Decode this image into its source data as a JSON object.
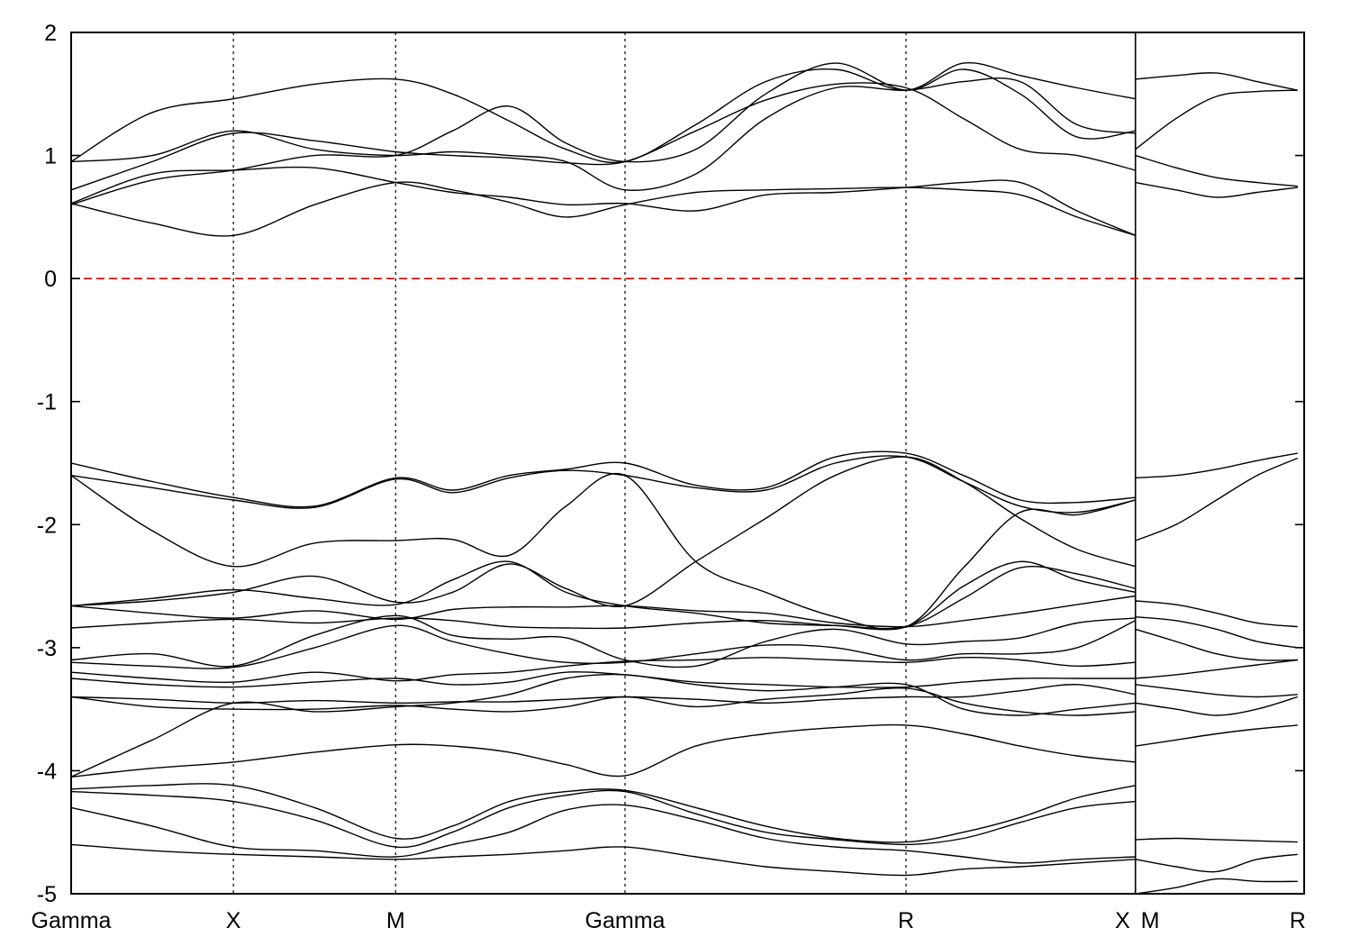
{
  "chart_data": {
    "type": "line",
    "title": "",
    "xlabel": "",
    "ylabel": "",
    "ylim": [
      -5,
      2
    ],
    "yticks": [
      -5,
      -4,
      -3,
      -2,
      -1,
      0,
      1,
      2
    ],
    "ytick_labels": [
      "-5",
      "-4",
      "-3",
      "-2",
      "-1",
      "0",
      "1",
      "2"
    ],
    "xlim": [
      0,
      7.6
    ],
    "kpoints": [
      {
        "label": "Gamma",
        "x": 0
      },
      {
        "label": "X",
        "x": 1.0
      },
      {
        "label": "M",
        "x": 2.0
      },
      {
        "label": "Gamma",
        "x": 3.414
      },
      {
        "label": "R",
        "x": 5.146
      },
      {
        "label": "X",
        "x": 6.56
      },
      {
        "label": "M",
        "x": 6.56
      },
      {
        "label": "R",
        "x": 7.56
      }
    ],
    "fermi_level": 0,
    "grid": "vertical dashed lines at high-symmetry points",
    "colors": {
      "bands": "#000000",
      "fermi": "#e00000"
    },
    "segments": [
      {
        "x": [
          0,
          0.5,
          1.0,
          1.5,
          2.0,
          2.35,
          2.7,
          3.05,
          3.414,
          3.85,
          4.28,
          4.71,
          5.146,
          5.5,
          5.85,
          6.2,
          6.56
        ],
        "series": [
          {
            "values": [
              0.61,
              0.45,
              0.35,
              0.6,
              0.78,
              0.72,
              0.62,
              0.5,
              0.6,
              0.7,
              0.72,
              0.73,
              0.74,
              0.72,
              0.68,
              0.5,
              0.35
            ]
          },
          {
            "values": [
              0.61,
              0.85,
              0.88,
              0.9,
              0.78,
              0.7,
              0.66,
              0.6,
              0.61,
              0.55,
              0.68,
              0.7,
              0.74,
              0.78,
              0.78,
              0.55,
              0.35
            ]
          },
          {
            "values": [
              0.72,
              0.95,
              1.18,
              1.12,
              1.03,
              1.0,
              0.98,
              0.94,
              0.95,
              1.2,
              1.45,
              1.58,
              1.55,
              1.3,
              1.05,
              1.0,
              0.88
            ]
          },
          {
            "values": [
              0.95,
              1.0,
              1.2,
              1.05,
              1.0,
              1.03,
              1.0,
              0.95,
              0.72,
              0.85,
              1.3,
              1.55,
              1.53,
              1.6,
              1.6,
              1.25,
              1.18
            ]
          },
          {
            "values": [
              0.95,
              1.35,
              1.46,
              1.58,
              1.62,
              1.5,
              1.28,
              1.05,
              0.95,
              1.25,
              1.6,
              1.7,
              1.53,
              1.75,
              1.65,
              1.55,
              1.46
            ]
          },
          {
            "values": [
              0.6,
              0.8,
              0.88,
              1.0,
              1.0,
              1.2,
              1.4,
              1.1,
              0.95,
              1.05,
              1.5,
              1.75,
              1.53,
              1.7,
              1.5,
              1.15,
              1.2
            ]
          },
          {
            "values": [
              -1.5,
              -1.65,
              -1.78,
              -1.85,
              -1.62,
              -1.72,
              -1.6,
              -1.55,
              -1.5,
              -1.68,
              -1.7,
              -1.45,
              -1.42,
              -1.6,
              -1.8,
              -1.82,
              -1.78
            ]
          },
          {
            "values": [
              -1.6,
              -1.7,
              -1.8,
              -1.86,
              -1.63,
              -1.74,
              -1.62,
              -1.56,
              -1.6,
              -1.7,
              -1.72,
              -1.5,
              -1.45,
              -1.65,
              -1.85,
              -1.9,
              -1.8
            ]
          },
          {
            "values": [
              -1.6,
              -2.05,
              -2.34,
              -2.15,
              -2.13,
              -2.12,
              -2.25,
              -1.85,
              -1.6,
              -2.3,
              -2.55,
              -2.75,
              -2.83,
              -2.35,
              -1.9,
              -1.92,
              -1.8
            ]
          },
          {
            "values": [
              -2.66,
              -2.62,
              -2.55,
              -2.42,
              -2.63,
              -2.55,
              -2.32,
              -2.52,
              -2.66,
              -2.3,
              -1.95,
              -1.6,
              -1.45,
              -1.65,
              -1.95,
              -2.2,
              -2.34
            ]
          },
          {
            "values": [
              -2.66,
              -2.6,
              -2.53,
              -2.6,
              -2.65,
              -2.45,
              -2.3,
              -2.55,
              -2.66,
              -2.72,
              -2.8,
              -2.82,
              -2.83,
              -2.6,
              -2.35,
              -2.4,
              -2.52
            ]
          },
          {
            "values": [
              -2.66,
              -2.72,
              -2.76,
              -2.7,
              -2.77,
              -2.69,
              -2.67,
              -2.67,
              -2.66,
              -2.7,
              -2.72,
              -2.8,
              -2.83,
              -2.78,
              -2.72,
              -2.65,
              -2.58
            ]
          },
          {
            "values": [
              -2.84,
              -2.8,
              -2.77,
              -2.8,
              -2.76,
              -2.78,
              -2.83,
              -2.84,
              -2.84,
              -2.8,
              -2.78,
              -2.82,
              -2.83,
              -2.5,
              -2.3,
              -2.45,
              -2.55
            ]
          },
          {
            "values": [
              -3.1,
              -3.05,
              -3.15,
              -2.9,
              -2.74,
              -2.9,
              -2.93,
              -2.92,
              -3.1,
              -3.15,
              -2.95,
              -2.85,
              -2.97,
              -2.95,
              -2.92,
              -2.8,
              -2.76
            ]
          },
          {
            "values": [
              -3.12,
              -3.15,
              -3.16,
              -3.0,
              -2.82,
              -2.95,
              -3.05,
              -3.12,
              -3.12,
              -3.05,
              -2.98,
              -3.0,
              -3.1,
              -3.05,
              -3.05,
              -3.0,
              -2.78
            ]
          },
          {
            "values": [
              -3.2,
              -3.25,
              -3.28,
              -3.2,
              -3.27,
              -3.22,
              -3.2,
              -3.15,
              -3.11,
              -3.1,
              -3.08,
              -3.1,
              -3.12,
              -3.08,
              -3.1,
              -3.15,
              -3.12
            ]
          },
          {
            "values": [
              -3.25,
              -3.3,
              -3.32,
              -3.28,
              -3.25,
              -3.3,
              -3.28,
              -3.2,
              -3.22,
              -3.28,
              -3.3,
              -3.32,
              -3.32,
              -3.28,
              -3.25,
              -3.25,
              -3.25
            ]
          },
          {
            "values": [
              -3.4,
              -3.42,
              -3.45,
              -3.43,
              -3.45,
              -3.44,
              -3.44,
              -3.42,
              -3.4,
              -3.42,
              -3.45,
              -3.42,
              -3.4,
              -3.4,
              -3.35,
              -3.3,
              -3.38
            ]
          },
          {
            "values": [
              -3.4,
              -3.48,
              -3.5,
              -3.5,
              -3.47,
              -3.5,
              -3.52,
              -3.48,
              -3.4,
              -3.48,
              -3.42,
              -3.38,
              -3.33,
              -3.45,
              -3.52,
              -3.55,
              -3.52
            ]
          },
          {
            "values": [
              -4.05,
              -3.75,
              -3.45,
              -3.52,
              -3.48,
              -3.45,
              -3.38,
              -3.25,
              -3.22,
              -3.3,
              -3.35,
              -3.32,
              -3.3,
              -3.5,
              -3.55,
              -3.5,
              -3.45
            ]
          },
          {
            "values": [
              -4.05,
              -3.98,
              -3.93,
              -3.85,
              -3.79,
              -3.8,
              -3.85,
              -3.95,
              -4.04,
              -3.8,
              -3.7,
              -3.65,
              -3.63,
              -3.7,
              -3.8,
              -3.88,
              -3.93
            ]
          },
          {
            "values": [
              -4.15,
              -4.12,
              -4.12,
              -4.3,
              -4.55,
              -4.45,
              -4.25,
              -4.17,
              -4.16,
              -4.3,
              -4.45,
              -4.55,
              -4.58,
              -4.5,
              -4.38,
              -4.22,
              -4.12
            ]
          },
          {
            "values": [
              -4.17,
              -4.2,
              -4.25,
              -4.4,
              -4.62,
              -4.5,
              -4.3,
              -4.2,
              -4.17,
              -4.35,
              -4.5,
              -4.56,
              -4.6,
              -4.55,
              -4.42,
              -4.3,
              -4.25
            ]
          },
          {
            "values": [
              -4.3,
              -4.45,
              -4.62,
              -4.65,
              -4.7,
              -4.6,
              -4.5,
              -4.32,
              -4.28,
              -4.4,
              -4.55,
              -4.62,
              -4.65,
              -4.7,
              -4.75,
              -4.72,
              -4.7
            ]
          },
          {
            "values": [
              -4.6,
              -4.65,
              -4.68,
              -4.7,
              -4.72,
              -4.7,
              -4.68,
              -4.65,
              -4.62,
              -4.7,
              -4.78,
              -4.82,
              -4.85,
              -4.8,
              -4.78,
              -4.75,
              -4.72
            ]
          }
        ]
      },
      {
        "x": [
          6.56,
          6.81,
          7.06,
          7.31,
          7.56
        ],
        "series": [
          {
            "values": [
              1.62,
              1.65,
              1.67,
              1.6,
              1.53
            ]
          },
          {
            "values": [
              1.05,
              1.3,
              1.48,
              1.52,
              1.53
            ]
          },
          {
            "values": [
              1.0,
              0.9,
              0.82,
              0.78,
              0.75
            ]
          },
          {
            "values": [
              0.78,
              0.72,
              0.66,
              0.7,
              0.74
            ]
          },
          {
            "values": [
              -1.62,
              -1.6,
              -1.55,
              -1.48,
              -1.42
            ]
          },
          {
            "values": [
              -2.13,
              -2.0,
              -1.8,
              -1.6,
              -1.46
            ]
          },
          {
            "values": [
              -2.62,
              -2.65,
              -2.72,
              -2.8,
              -2.83
            ]
          },
          {
            "values": [
              -2.75,
              -2.78,
              -2.85,
              -2.95,
              -3.0
            ]
          },
          {
            "values": [
              -2.85,
              -2.95,
              -3.05,
              -3.1,
              -3.1
            ]
          },
          {
            "values": [
              -3.25,
              -3.22,
              -3.18,
              -3.14,
              -3.1
            ]
          },
          {
            "values": [
              -3.3,
              -3.34,
              -3.38,
              -3.4,
              -3.38
            ]
          },
          {
            "values": [
              -3.45,
              -3.5,
              -3.55,
              -3.5,
              -3.4
            ]
          },
          {
            "values": [
              -3.8,
              -3.75,
              -3.7,
              -3.66,
              -3.63
            ]
          },
          {
            "values": [
              -4.56,
              -4.55,
              -4.56,
              -4.57,
              -4.58
            ]
          },
          {
            "values": [
              -4.72,
              -4.78,
              -4.82,
              -4.72,
              -4.68
            ]
          },
          {
            "values": [
              -5.0,
              -4.95,
              -4.88,
              -4.9,
              -4.9
            ]
          }
        ]
      }
    ]
  }
}
